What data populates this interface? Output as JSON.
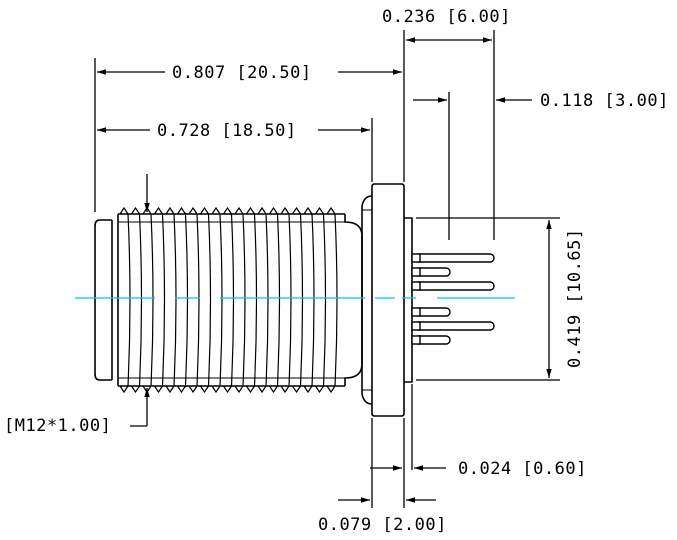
{
  "drawing": {
    "dimensions": {
      "overall_length": "0.807 [20.50]",
      "thread_length": "0.728 [18.50]",
      "pin_length": "0.236 [6.00]",
      "pin_step": "0.118 [3.00]",
      "pin_height": "0.419 [10.65]",
      "thread_spec": "[M12*1.00]",
      "flange_gap": "0.024 [0.60]",
      "flange_thickness": "0.079 [2.00]"
    },
    "colors": {
      "outline": "#000000",
      "centerline": "#00c8e6",
      "background": "#ffffff"
    }
  }
}
